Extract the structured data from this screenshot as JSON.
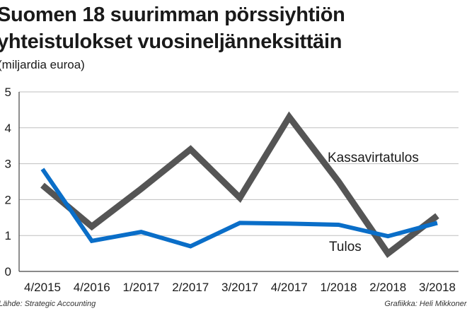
{
  "header": {
    "title_line1": "Suomen 18 suurimman pörssiyhtiön",
    "title_line2": "yhteistulokset vuosineljänneksittäin",
    "subtitle": "(miljardia euroa)"
  },
  "footer": {
    "source": "Lähde: Strategic Accounting",
    "credit": "Grafiikka: Heli Mikkonen"
  },
  "colors": {
    "Kassavirtatulos": "#555555",
    "Tulos": "#0a6ec8",
    "grid": "#bfbfbf"
  },
  "chart_data": {
    "type": "line",
    "categories": [
      "4/2015",
      "4/2016",
      "1/2017",
      "2/2017",
      "3/2017",
      "4/2017",
      "1/2018",
      "2/2018",
      "3/2018"
    ],
    "series": [
      {
        "name": "Kassavirtatulos",
        "values": [
          2.4,
          1.25,
          2.3,
          3.4,
          2.05,
          4.3,
          2.5,
          0.5,
          1.55
        ]
      },
      {
        "name": "Tulos",
        "values": [
          2.85,
          0.85,
          1.1,
          0.7,
          1.35,
          1.33,
          1.3,
          0.98,
          1.35
        ]
      }
    ],
    "yticks": [
      0,
      1,
      2,
      3,
      4,
      5
    ],
    "ylim": [
      0,
      5
    ],
    "grid": true,
    "xlabel": "",
    "ylabel": ""
  }
}
